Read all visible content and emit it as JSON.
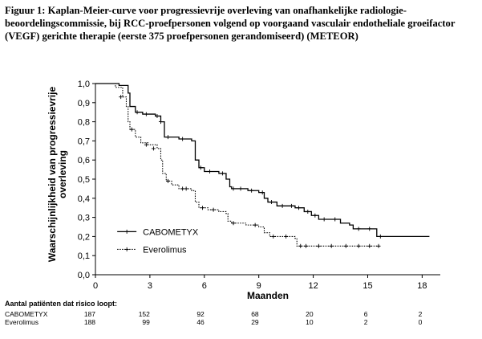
{
  "figure": {
    "caption": "Figuur 1: Kaplan-Meier-curve voor progressievrije overleving van onafhankelijke radiologie-beoordelingscommissie, bij RCC-proefpersonen volgend op voorgaand vasculair endotheliale groeifactor (VEGF) gerichte therapie (eerste 375 proefpersonen gerandomiseerd) (METEOR)"
  },
  "chart_data": {
    "type": "line",
    "subtype": "kaplan-meier",
    "xlabel": "Maanden",
    "ylabel": "Waarschijnlijkheid van progressievrije overleving",
    "xlim": [
      0,
      19
    ],
    "ylim": [
      0,
      1.0
    ],
    "xticks": [
      "0",
      "3",
      "6",
      "9",
      "12",
      "15",
      "18"
    ],
    "yticks": [
      "0,0",
      "0,1",
      "0,2",
      "0,3",
      "0,4",
      "0,5",
      "0,6",
      "0,7",
      "0,8",
      "0,9",
      "1,0"
    ],
    "grid": false,
    "legend_position": "bottom-left",
    "series": [
      {
        "name": "CABOMETYX",
        "color": "#000000",
        "line_style": "solid",
        "censor_marker": "+",
        "steps": [
          [
            0,
            1.0
          ],
          [
            1.3,
            0.99
          ],
          [
            1.8,
            0.95
          ],
          [
            1.9,
            0.88
          ],
          [
            2.2,
            0.85
          ],
          [
            2.6,
            0.84
          ],
          [
            3.3,
            0.83
          ],
          [
            3.6,
            0.8
          ],
          [
            3.8,
            0.72
          ],
          [
            4.6,
            0.71
          ],
          [
            5.3,
            0.7
          ],
          [
            5.5,
            0.6
          ],
          [
            5.7,
            0.56
          ],
          [
            6.0,
            0.54
          ],
          [
            6.8,
            0.53
          ],
          [
            7.2,
            0.5
          ],
          [
            7.4,
            0.46
          ],
          [
            7.5,
            0.45
          ],
          [
            8.4,
            0.44
          ],
          [
            9.0,
            0.43
          ],
          [
            9.3,
            0.4
          ],
          [
            9.5,
            0.38
          ],
          [
            10.0,
            0.36
          ],
          [
            11.0,
            0.35
          ],
          [
            11.5,
            0.33
          ],
          [
            11.9,
            0.31
          ],
          [
            12.3,
            0.29
          ],
          [
            13.0,
            0.29
          ],
          [
            13.5,
            0.27
          ],
          [
            14.0,
            0.26
          ],
          [
            14.2,
            0.24
          ],
          [
            15.3,
            0.24
          ],
          [
            15.5,
            0.2
          ],
          [
            18.4,
            0.2
          ]
        ],
        "censored": [
          [
            2.3,
            0.85
          ],
          [
            2.8,
            0.84
          ],
          [
            3.4,
            0.83
          ],
          [
            3.6,
            0.8
          ],
          [
            4.0,
            0.72
          ],
          [
            4.8,
            0.71
          ],
          [
            5.8,
            0.56
          ],
          [
            6.3,
            0.54
          ],
          [
            7.0,
            0.53
          ],
          [
            7.6,
            0.45
          ],
          [
            8.0,
            0.45
          ],
          [
            8.6,
            0.44
          ],
          [
            9.2,
            0.43
          ],
          [
            9.7,
            0.38
          ],
          [
            10.3,
            0.36
          ],
          [
            10.8,
            0.36
          ],
          [
            11.2,
            0.35
          ],
          [
            11.7,
            0.33
          ],
          [
            12.1,
            0.31
          ],
          [
            12.6,
            0.29
          ],
          [
            13.2,
            0.29
          ],
          [
            14.5,
            0.24
          ],
          [
            15.1,
            0.24
          ],
          [
            15.7,
            0.2
          ]
        ]
      },
      {
        "name": "Everolimus",
        "color": "#000000",
        "line_style": "dotted",
        "censor_marker": "+",
        "steps": [
          [
            0,
            1.0
          ],
          [
            1.1,
            0.98
          ],
          [
            1.5,
            0.93
          ],
          [
            1.7,
            0.88
          ],
          [
            1.8,
            0.8
          ],
          [
            1.9,
            0.76
          ],
          [
            2.2,
            0.72
          ],
          [
            2.5,
            0.69
          ],
          [
            2.9,
            0.68
          ],
          [
            3.4,
            0.66
          ],
          [
            3.6,
            0.6
          ],
          [
            3.7,
            0.53
          ],
          [
            3.9,
            0.49
          ],
          [
            4.2,
            0.47
          ],
          [
            4.6,
            0.45
          ],
          [
            5.3,
            0.44
          ],
          [
            5.5,
            0.38
          ],
          [
            5.7,
            0.35
          ],
          [
            6.2,
            0.34
          ],
          [
            6.8,
            0.33
          ],
          [
            7.2,
            0.32
          ],
          [
            7.3,
            0.28
          ],
          [
            7.5,
            0.27
          ],
          [
            8.3,
            0.26
          ],
          [
            9.0,
            0.25
          ],
          [
            9.3,
            0.22
          ],
          [
            9.6,
            0.2
          ],
          [
            11.0,
            0.19
          ],
          [
            11.1,
            0.15
          ],
          [
            15.7,
            0.15
          ]
        ],
        "censored": [
          [
            1.4,
            0.93
          ],
          [
            2.0,
            0.76
          ],
          [
            2.8,
            0.68
          ],
          [
            3.2,
            0.66
          ],
          [
            4.0,
            0.49
          ],
          [
            4.8,
            0.45
          ],
          [
            5.0,
            0.45
          ],
          [
            5.9,
            0.35
          ],
          [
            6.5,
            0.34
          ],
          [
            7.6,
            0.27
          ],
          [
            8.8,
            0.26
          ],
          [
            9.8,
            0.2
          ],
          [
            10.5,
            0.2
          ],
          [
            11.3,
            0.15
          ],
          [
            11.6,
            0.15
          ],
          [
            12.3,
            0.15
          ],
          [
            13.0,
            0.15
          ],
          [
            13.8,
            0.15
          ],
          [
            14.5,
            0.15
          ],
          [
            15.1,
            0.15
          ],
          [
            15.6,
            0.15
          ]
        ]
      }
    ]
  },
  "risk_table": {
    "title": "Aantal patiënten dat risico loopt:",
    "rows": [
      {
        "label": "CABOMETYX",
        "values": [
          "187",
          "152",
          "92",
          "68",
          "20",
          "6",
          "2"
        ]
      },
      {
        "label": "Everolimus",
        "values": [
          "188",
          "99",
          "46",
          "29",
          "10",
          "2",
          "0"
        ]
      }
    ]
  }
}
